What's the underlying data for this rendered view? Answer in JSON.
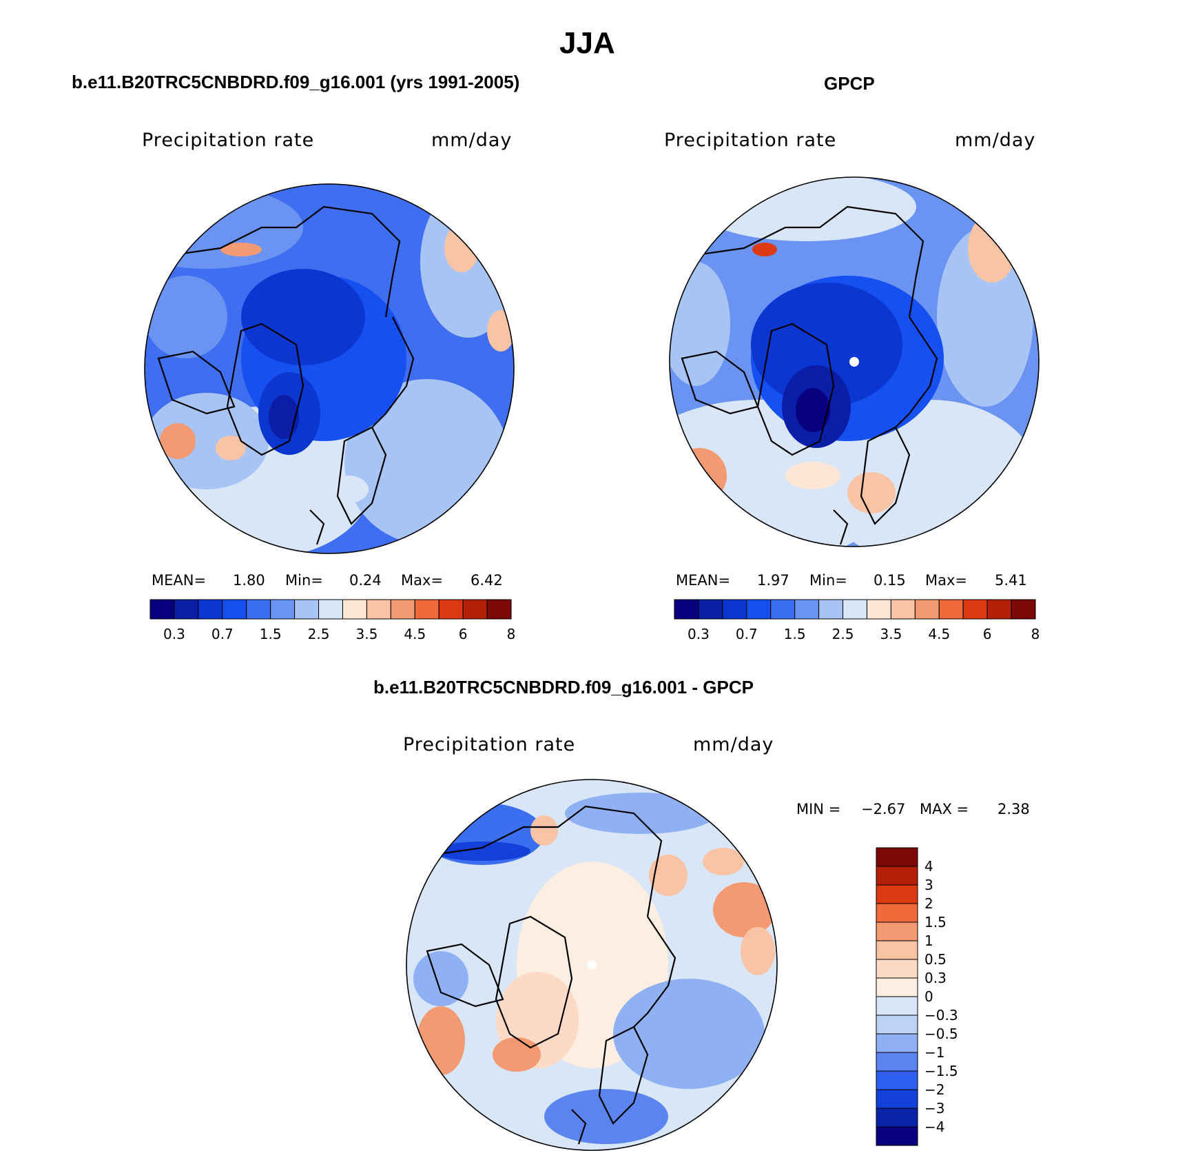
{
  "main_title": "JJA",
  "panels": {
    "model": {
      "title": "b.e11.B20TRC5CNBDRD.f09_g16.001 (yrs 1991-2005)",
      "variable": "Precipitation rate",
      "units": "mm/day",
      "mean_label": "MEAN=",
      "mean": "1.80",
      "min_label": "Min=",
      "min": "0.24",
      "max_label": "Max=",
      "max": "6.42"
    },
    "obs": {
      "title": "GPCP",
      "variable": "Precipitation rate",
      "units": "mm/day",
      "mean_label": "MEAN=",
      "mean": "1.97",
      "min_label": "Min=",
      "min": "0.15",
      "max_label": "Max=",
      "max": "5.41"
    },
    "diff": {
      "title": "b.e11.B20TRC5CNBDRD.f09_g16.001 - GPCP",
      "variable": "Precipitation rate",
      "units": "mm/day",
      "min_label": "MIN =",
      "min": "−2.67",
      "max_label": "MAX =",
      "max": "2.38"
    }
  },
  "chart_data": [
    {
      "type": "heatmap",
      "projection": "north polar stereographic",
      "title": "b.e11.B20TRC5CNBDRD.f09_g16.001 (yrs 1991-2005)",
      "variable": "Precipitation rate",
      "units": "mm/day",
      "stats": {
        "mean": 1.8,
        "min": 0.24,
        "max": 6.42
      },
      "colorbar": {
        "tick_labels": [
          "0.3",
          "0.7",
          "1.5",
          "2.5",
          "3.5",
          "4.5",
          "6",
          "8"
        ],
        "colors": [
          "#08007f",
          "#0a1ea8",
          "#0b36cf",
          "#1650f0",
          "#3c6ef0",
          "#6a93f2",
          "#a8c4f5",
          "#d8e6f7",
          "#fde6d6",
          "#f9c3a6",
          "#f49a72",
          "#f06a3c",
          "#dd3a14",
          "#b5200b",
          "#7d0906"
        ]
      }
    },
    {
      "type": "heatmap",
      "projection": "north polar stereographic",
      "title": "GPCP",
      "variable": "Precipitation rate",
      "units": "mm/day",
      "stats": {
        "mean": 1.97,
        "min": 0.15,
        "max": 5.41
      },
      "colorbar": {
        "tick_labels": [
          "0.3",
          "0.7",
          "1.5",
          "2.5",
          "3.5",
          "4.5",
          "6",
          "8"
        ],
        "colors": [
          "#08007f",
          "#0a1ea8",
          "#0b36cf",
          "#1650f0",
          "#3c6ef0",
          "#6a93f2",
          "#a8c4f5",
          "#d8e6f7",
          "#fde6d6",
          "#f9c3a6",
          "#f49a72",
          "#f06a3c",
          "#dd3a14",
          "#b5200b",
          "#7d0906"
        ]
      }
    },
    {
      "type": "heatmap",
      "projection": "north polar stereographic",
      "title": "b.e11.B20TRC5CNBDRD.f09_g16.001 - GPCP",
      "variable": "Precipitation rate",
      "units": "mm/day",
      "stats": {
        "min": -2.67,
        "max": 2.38
      },
      "colorbar": {
        "tick_labels": [
          "4",
          "3",
          "2",
          "1.5",
          "1",
          "0.5",
          "0.3",
          "0",
          "−0.3",
          "−0.5",
          "−1",
          "−1.5",
          "−2",
          "−3",
          "−4"
        ],
        "colors": [
          "#7d0906",
          "#b5200b",
          "#dd3a14",
          "#f06a3c",
          "#f49a72",
          "#f9c3a6",
          "#fddac6",
          "#fdeee2",
          "#d8e6f7",
          "#bcd3f6",
          "#8fb0f3",
          "#5b84f0",
          "#2e5ff0",
          "#1240d8",
          "#0a22a8",
          "#08007f"
        ]
      }
    }
  ]
}
